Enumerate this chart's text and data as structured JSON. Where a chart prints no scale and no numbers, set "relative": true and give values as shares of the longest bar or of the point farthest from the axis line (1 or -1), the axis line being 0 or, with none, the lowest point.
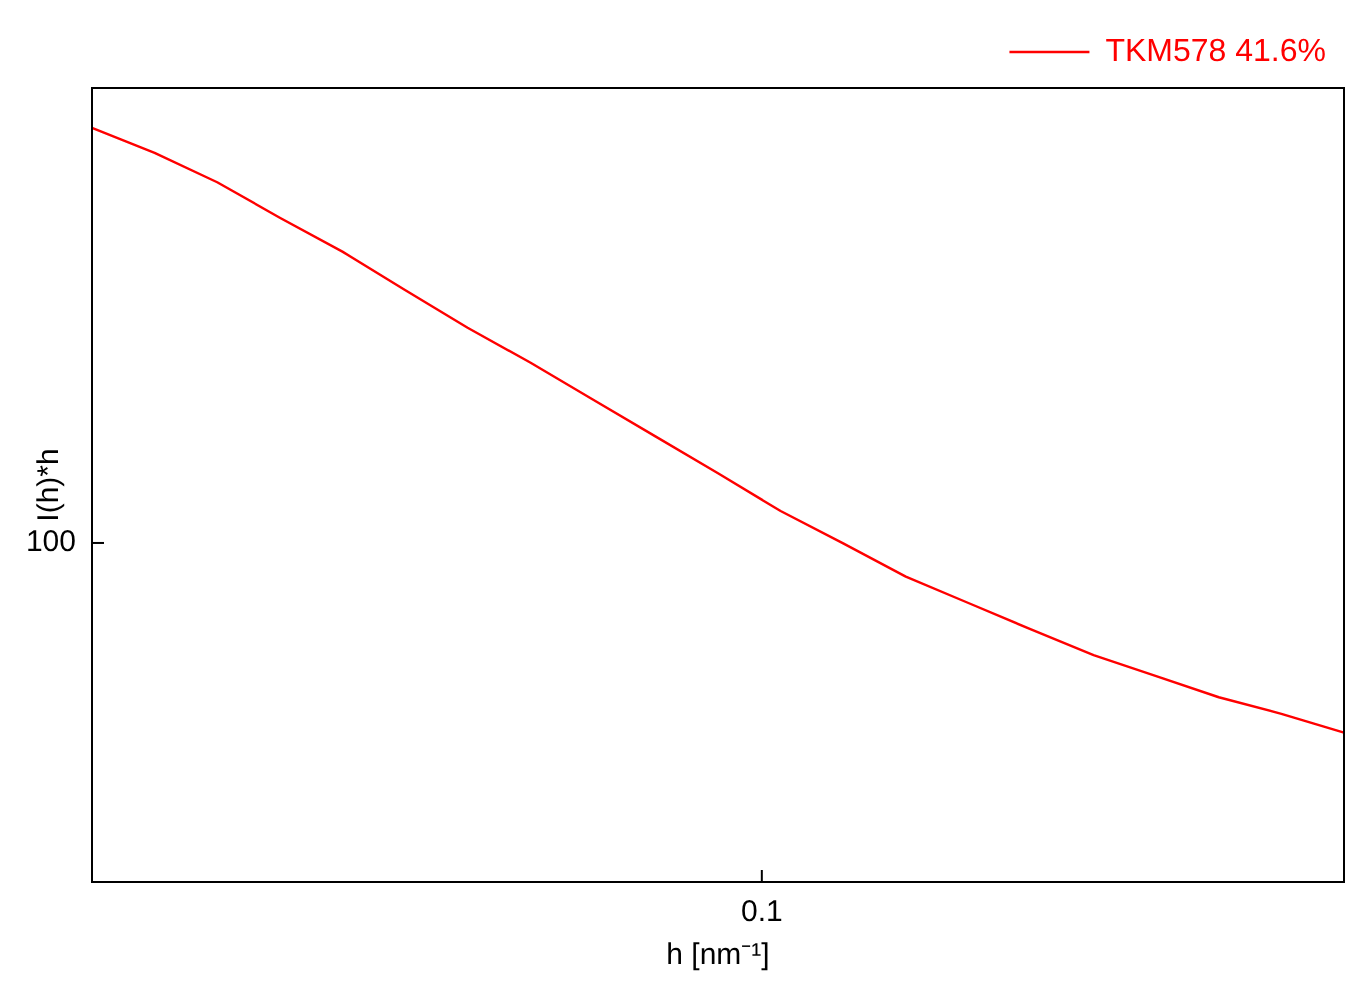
{
  "chart_data": {
    "type": "line",
    "xlabel": "h [nm⁻¹]",
    "ylabel": "I(h)*h",
    "relative": true,
    "annotations": [
      "100",
      "0.1"
    ],
    "legend": "top right",
    "line_style": "solid",
    "categories": [
      null,
      null,
      null,
      null,
      null,
      null,
      null,
      null,
      null,
      null,
      null,
      null,
      null,
      null,
      null,
      null,
      null,
      null,
      null,
      null,
      null
    ],
    "series": [
      {
        "name": "TKM578 41.6%",
        "color": "#ff0000",
        "values": [
          1,
          0.967,
          0.928,
          0.881,
          0.836,
          0.785,
          0.735,
          0.689,
          0.64,
          0.591,
          0.542,
          0.492,
          0.449,
          0.405,
          0.37,
          0.335,
          0.301,
          0.273,
          0.245,
          0.223,
          0.198
        ]
      }
    ]
  }
}
